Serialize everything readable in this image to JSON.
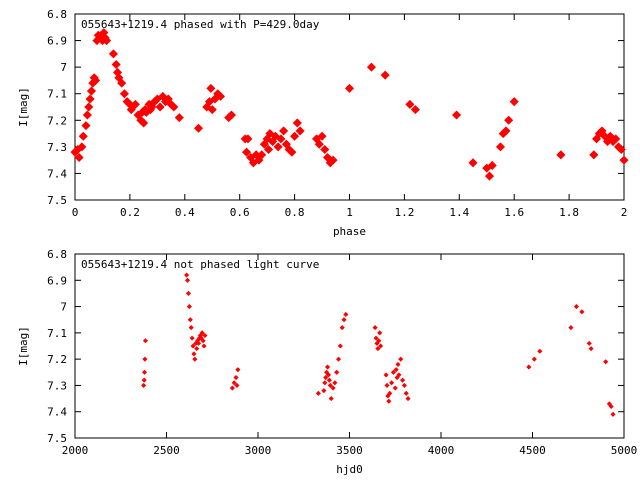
{
  "chart_data": [
    {
      "type": "scatter",
      "title": "055643+1219.4 phased with P=429.0day",
      "xlabel": "phase",
      "ylabel": "I[mag]",
      "xlim": [
        0,
        2
      ],
      "ylim": [
        6.8,
        7.5
      ],
      "y_inverted": true,
      "xticks": [
        "0",
        "0.2",
        "0.4",
        "0.6",
        "0.8",
        "1",
        "1.2",
        "1.4",
        "1.6",
        "1.8",
        "2"
      ],
      "yticks": [
        "6.8",
        "6.9",
        "7",
        "7.1",
        "7.2",
        "7.3",
        "7.4",
        "7.5"
      ],
      "grid": false,
      "color": "#ff0000",
      "series": [
        {
          "x": [
            0.0,
            0.01,
            0.015,
            0.025,
            0.03,
            0.04,
            0.045,
            0.05,
            0.055,
            0.06,
            0.065,
            0.07,
            0.075,
            0.08,
            0.085,
            0.09,
            0.1,
            0.105,
            0.11,
            0.115,
            0.14,
            0.15,
            0.155,
            0.16,
            0.17,
            0.18,
            0.19,
            0.2,
            0.205,
            0.21,
            0.22,
            0.23,
            0.24,
            0.245,
            0.25,
            0.255,
            0.26,
            0.27,
            0.275,
            0.28,
            0.29,
            0.3,
            0.31,
            0.32,
            0.33,
            0.34,
            0.35,
            0.36,
            0.38,
            0.45,
            0.48,
            0.49,
            0.495,
            0.5,
            0.51,
            0.52,
            0.53,
            0.56,
            0.57,
            0.62,
            0.625,
            0.63,
            0.64,
            0.65,
            0.66,
            0.67,
            0.68,
            0.69,
            0.7,
            0.705,
            0.71,
            0.72,
            0.73,
            0.74,
            0.75,
            0.76,
            0.77,
            0.78,
            0.79,
            0.8,
            0.81,
            0.82,
            0.88,
            0.89,
            0.9,
            0.91,
            0.92,
            0.93,
            0.94,
            1.0,
            1.08,
            1.13,
            1.22,
            1.24,
            1.39,
            1.45,
            1.5,
            1.51,
            1.52,
            1.55,
            1.56,
            1.57,
            1.58,
            1.6,
            1.77,
            1.89,
            1.9,
            1.91,
            1.92,
            1.93,
            1.94,
            1.95,
            1.96,
            1.97,
            1.98,
            1.99,
            2.0
          ],
          "y": [
            7.32,
            7.31,
            7.34,
            7.3,
            7.26,
            7.22,
            7.18,
            7.15,
            7.12,
            7.09,
            7.06,
            7.04,
            7.05,
            6.9,
            6.88,
            6.89,
            6.9,
            6.87,
            6.89,
            6.9,
            6.95,
            6.99,
            7.02,
            7.04,
            7.06,
            7.1,
            7.13,
            7.14,
            7.16,
            7.15,
            7.14,
            7.18,
            7.2,
            7.17,
            7.21,
            7.16,
            7.17,
            7.14,
            7.16,
            7.15,
            7.13,
            7.12,
            7.15,
            7.11,
            7.13,
            7.12,
            7.14,
            7.15,
            7.19,
            7.23,
            7.15,
            7.13,
            7.08,
            7.16,
            7.12,
            7.1,
            7.11,
            7.19,
            7.18,
            7.27,
            7.32,
            7.27,
            7.34,
            7.36,
            7.33,
            7.35,
            7.33,
            7.29,
            7.27,
            7.31,
            7.25,
            7.28,
            7.26,
            7.3,
            7.27,
            7.24,
            7.29,
            7.31,
            7.32,
            7.26,
            7.21,
            7.24,
            7.27,
            7.29,
            7.26,
            7.31,
            7.34,
            7.36,
            7.35,
            7.08,
            7.0,
            7.03,
            7.14,
            7.16,
            7.18,
            7.36,
            7.38,
            7.41,
            7.37,
            7.3,
            7.25,
            7.24,
            7.2,
            7.13,
            7.33,
            7.33,
            7.27,
            7.25,
            7.24,
            7.26,
            7.28,
            7.26,
            7.28,
            7.27,
            7.3,
            7.31,
            7.35
          ]
        }
      ]
    },
    {
      "type": "scatter",
      "title": "055643+1219.4 not phased light curve",
      "xlabel": "hjd0",
      "ylabel": "I[mag]",
      "xlim": [
        2000,
        5000
      ],
      "ylim": [
        6.8,
        7.5
      ],
      "y_inverted": true,
      "xticks": [
        "2000",
        "2500",
        "3000",
        "3500",
        "4000",
        "4500",
        "5000"
      ],
      "yticks": [
        "6.8",
        "6.9",
        "7",
        "7.1",
        "7.2",
        "7.3",
        "7.4",
        "7.5"
      ],
      "grid": false,
      "color": "#ff0000",
      "series": [
        {
          "x": [
            2375,
            2378,
            2380,
            2382,
            2385,
            2610,
            2615,
            2620,
            2625,
            2630,
            2635,
            2640,
            2645,
            2650,
            2655,
            2660,
            2665,
            2670,
            2675,
            2680,
            2685,
            2690,
            2695,
            2700,
            2705,
            2710,
            2860,
            2870,
            2880,
            2885,
            2890,
            3330,
            3360,
            3365,
            3370,
            3375,
            3380,
            3385,
            3390,
            3395,
            3400,
            3410,
            3420,
            3430,
            3440,
            3450,
            3460,
            3470,
            3480,
            3640,
            3645,
            3650,
            3655,
            3660,
            3665,
            3670,
            3700,
            3705,
            3710,
            3715,
            3720,
            3730,
            3740,
            3750,
            3755,
            3760,
            3765,
            3770,
            3780,
            3790,
            3800,
            3810,
            3820,
            4480,
            4510,
            4540,
            4710,
            4740,
            4770,
            4810,
            4820,
            4900,
            4920,
            4930,
            4940
          ],
          "y": [
            7.3,
            7.28,
            7.25,
            7.2,
            7.13,
            6.88,
            6.9,
            6.95,
            7.0,
            7.05,
            7.08,
            7.12,
            7.15,
            7.18,
            7.2,
            7.14,
            7.16,
            7.13,
            7.14,
            7.12,
            7.11,
            7.12,
            7.1,
            7.13,
            7.15,
            7.11,
            7.31,
            7.29,
            7.27,
            7.3,
            7.24,
            7.33,
            7.32,
            7.29,
            7.27,
            7.25,
            7.23,
            7.26,
            7.28,
            7.3,
            7.35,
            7.31,
            7.29,
            7.25,
            7.2,
            7.15,
            7.08,
            7.05,
            7.03,
            7.08,
            7.12,
            7.14,
            7.16,
            7.13,
            7.1,
            7.15,
            7.26,
            7.3,
            7.34,
            7.36,
            7.33,
            7.29,
            7.25,
            7.31,
            7.24,
            7.27,
            7.22,
            7.26,
            7.2,
            7.28,
            7.3,
            7.33,
            7.35,
            7.23,
            7.2,
            7.17,
            7.08,
            7.0,
            7.02,
            7.14,
            7.16,
            7.21,
            7.37,
            7.38,
            7.41
          ]
        }
      ]
    }
  ]
}
